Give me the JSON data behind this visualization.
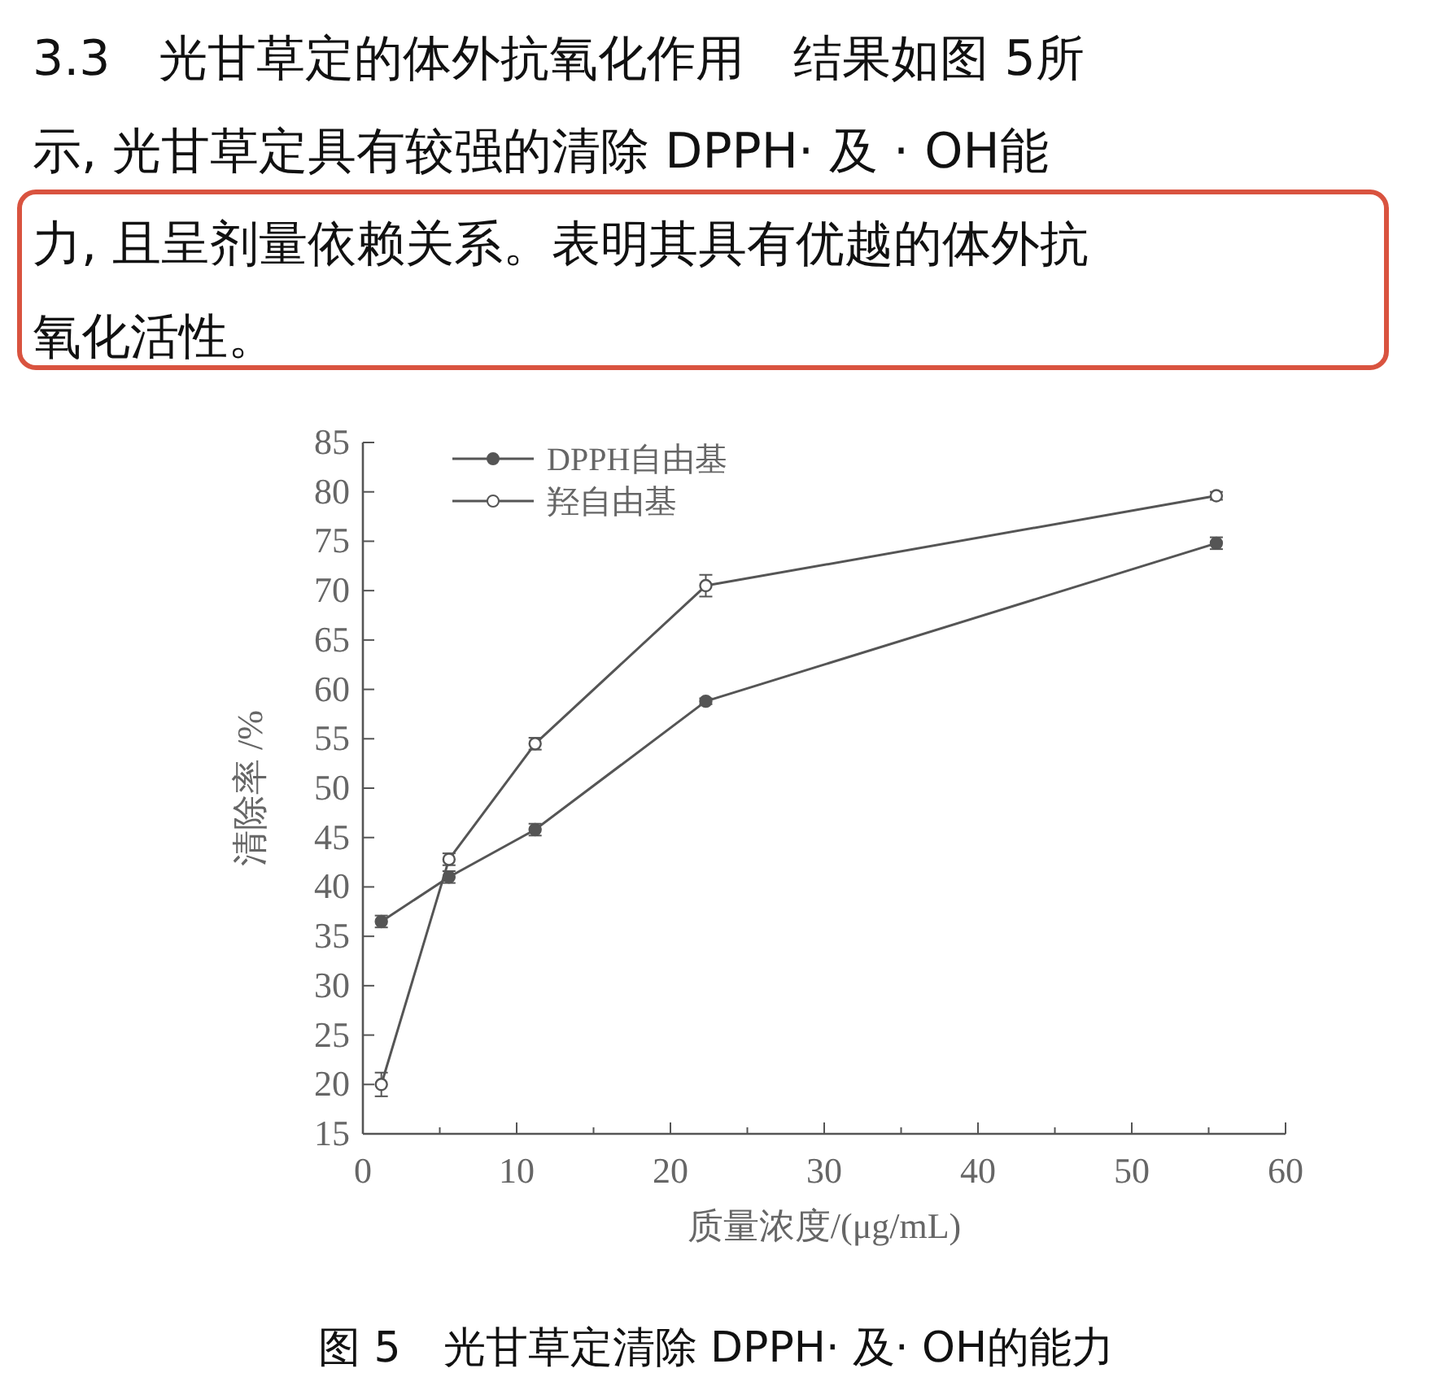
{
  "chart_data": {
    "type": "line",
    "title": "图 5　光甘草定清除 DPPH· 及· OH的能力",
    "xlabel": "质量浓度/(μg/mL)",
    "ylabel": "清除率 /%",
    "annotations": [
      "3.3　光甘草定的体外抗氧化作用　结果如图 5所",
      "示, 光甘草定具有较强的清除 DPPH· 及 · OH能",
      "力, 且呈剂量依赖关系。表明其具有优越的体外抗",
      "氧化活性。"
    ],
    "x": [
      1.2,
      5.6,
      11.2,
      22.3,
      55.5
    ],
    "series": [
      {
        "name": "DPPH自由基",
        "color": "#555555",
        "values": [
          36.5,
          41,
          45.8,
          58.8,
          74.8
        ],
        "errors": [
          0.6,
          0.6,
          0.6,
          0.3,
          0.6
        ]
      },
      {
        "name": "羟自由基",
        "color": "#555555",
        "values": [
          20,
          42.8,
          54.5,
          70.5,
          79.6
        ],
        "errors": [
          1.2,
          0.6,
          0.6,
          1.1,
          0.4
        ]
      }
    ],
    "xlim": [
      0,
      60
    ],
    "xticks": [
      0,
      {
        "value": 5,
        "label": null
      },
      10,
      {
        "value": 15,
        "label": null
      },
      20,
      {
        "value": 25,
        "label": null
      },
      30,
      {
        "value": 35,
        "label": null
      },
      40,
      {
        "value": 45,
        "label": null
      },
      50,
      {
        "value": 55,
        "label": null
      },
      60
    ],
    "ylim": [
      15,
      85
    ],
    "yticks": [
      15,
      20,
      25,
      30,
      35,
      40,
      45,
      50,
      55,
      60,
      65,
      70,
      75,
      80,
      85
    ],
    "marker": "circle",
    "legend": "top left",
    "grid": false
  }
}
